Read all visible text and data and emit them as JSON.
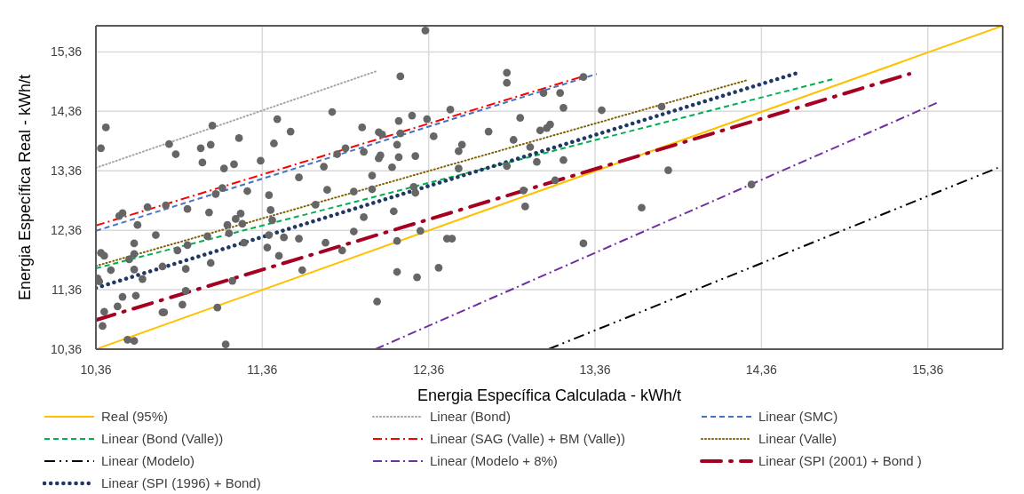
{
  "chart_data": {
    "type": "scatter",
    "xlabel": "Energia Específica Calculada - kWh/t",
    "ylabel": "Energia Específica Real - kWh/t",
    "xlim": [
      10.36,
      15.81
    ],
    "ylim": [
      10.36,
      15.8
    ],
    "xticks": [
      {
        "value": 10.36,
        "label": "10,36"
      },
      {
        "value": 11.36,
        "label": "11,36"
      },
      {
        "value": 12.36,
        "label": "12,36"
      },
      {
        "value": 13.36,
        "label": "13,36"
      },
      {
        "value": 14.36,
        "label": "14,36"
      },
      {
        "value": 15.36,
        "label": "15,36"
      }
    ],
    "yticks": [
      {
        "value": 10.36,
        "label": "10,36"
      },
      {
        "value": 11.36,
        "label": "11,36"
      },
      {
        "value": 12.36,
        "label": "12,36"
      },
      {
        "value": 13.36,
        "label": "13,36"
      },
      {
        "value": 14.36,
        "label": "14,36"
      },
      {
        "value": 15.36,
        "label": "15,36"
      }
    ],
    "grid": true,
    "legend": "bottom",
    "series": [
      {
        "color": "#666666",
        "marker": "circle",
        "x": [
          10.42,
          10.39,
          10.8,
          10.84,
          10.99,
          11.05,
          11.06,
          11.0,
          11.22,
          11.13,
          11.19,
          11.35,
          11.43,
          11.45,
          11.53,
          11.58,
          11.12,
          11.08,
          11.27,
          11.4,
          11.41,
          11.42,
          10.91,
          10.78,
          10.67,
          10.52,
          10.5,
          10.61,
          11.04,
          11.2,
          11.23,
          11.24,
          11.15,
          11.16,
          11.03,
          10.72,
          10.59,
          10.59,
          10.39,
          10.41,
          10.56,
          10.85,
          10.91,
          11.25,
          11.4,
          11.49,
          11.58,
          11.39,
          11.46,
          11.6,
          11.05,
          10.9,
          10.76,
          10.59,
          10.45,
          10.37,
          10.38,
          10.64,
          11.18,
          10.9,
          10.6,
          10.52,
          10.49,
          10.88,
          10.76,
          10.77,
          10.41,
          10.4,
          11.09,
          10.55,
          10.59,
          11.14,
          12.34,
          12.19,
          12.83,
          12.83,
          11.78,
          12.26,
          12.18,
          12.35,
          12.49,
          12.91,
          11.96,
          12.06,
          12.08,
          12.19,
          12.39,
          12.72,
          12.87,
          11.86,
          11.81,
          11.97,
          12.17,
          12.56,
          12.54,
          12.06,
          12.07,
          12.18,
          12.28,
          11.73,
          12.14,
          12.54,
          12.83,
          12.02,
          11.75,
          11.91,
          12.02,
          12.27,
          12.28,
          11.68,
          12.15,
          11.97,
          11.91,
          12.31,
          11.74,
          11.84,
          12.17,
          12.47,
          12.5,
          12.42,
          12.17,
          12.29,
          12.05,
          12.93,
          12.94,
          13.29,
          13.05,
          13.15,
          13.17,
          13.4,
          13.03,
          13.07,
          13.09,
          13.76,
          12.97,
          13.01,
          13.17,
          13.12,
          13.8,
          13.64,
          13.29,
          14.3
        ],
        "values": [
          14.09,
          13.74,
          13.81,
          13.64,
          13.74,
          13.8,
          14.12,
          13.5,
          13.91,
          13.4,
          13.47,
          13.53,
          13.82,
          14.23,
          14.02,
          13.25,
          13.07,
          12.97,
          13.02,
          12.95,
          12.7,
          12.53,
          12.72,
          12.78,
          12.75,
          12.65,
          12.6,
          12.45,
          12.66,
          12.55,
          12.64,
          12.47,
          12.45,
          12.31,
          12.26,
          12.28,
          12.14,
          11.96,
          11.98,
          11.93,
          11.87,
          12.02,
          12.11,
          12.15,
          12.28,
          12.24,
          12.22,
          12.07,
          11.93,
          11.69,
          11.81,
          11.71,
          11.75,
          11.7,
          11.69,
          11.55,
          11.5,
          11.54,
          11.51,
          11.34,
          11.26,
          11.24,
          11.08,
          11.11,
          10.98,
          10.98,
          10.99,
          10.75,
          11.06,
          10.52,
          10.5,
          10.44,
          15.72,
          14.95,
          15.01,
          14.84,
          14.35,
          14.29,
          14.2,
          14.23,
          14.39,
          14.25,
          14.09,
          14.01,
          13.97,
          13.99,
          13.94,
          14.02,
          13.88,
          13.74,
          13.64,
          13.68,
          13.8,
          13.8,
          13.69,
          13.57,
          13.62,
          13.59,
          13.61,
          13.43,
          13.42,
          13.4,
          13.44,
          13.28,
          13.04,
          13.01,
          13.05,
          13.09,
          12.99,
          12.79,
          12.68,
          12.58,
          12.34,
          12.35,
          12.15,
          12.02,
          12.18,
          12.22,
          12.22,
          11.73,
          11.66,
          11.57,
          11.16,
          13.03,
          12.76,
          14.94,
          14.67,
          14.67,
          14.42,
          14.38,
          14.04,
          14.08,
          14.14,
          14.44,
          13.76,
          13.51,
          13.54,
          13.2,
          13.37,
          12.74,
          12.14,
          13.13
        ]
      },
      {
        "type": "line",
        "name": "Real (95%)",
        "color": "#ffc000",
        "line_style": "solid",
        "x": [
          10.36,
          15.81
        ],
        "values": [
          10.36,
          15.8
        ]
      },
      {
        "type": "line",
        "name": "Linear (Bond)",
        "color": "#a6a6a6",
        "line_style": "dotted",
        "x": [
          10.36,
          12.05
        ],
        "values": [
          13.41,
          15.04
        ]
      },
      {
        "type": "line",
        "name": "Linear (SMC)",
        "color": "#4472c4",
        "line_style": "dashed",
        "x": [
          10.36,
          13.37
        ],
        "values": [
          12.35,
          14.99
        ]
      },
      {
        "type": "line",
        "name": "Linear (Bond (Valle))",
        "color": "#00b050",
        "line_style": "dashed",
        "x": [
          10.36,
          14.8
        ],
        "values": [
          11.72,
          14.91
        ]
      },
      {
        "type": "line",
        "name": "Linear (SAG (Valle) + BM (Valle))",
        "color": "#ff0000",
        "line_style": "dashdot",
        "x": [
          10.36,
          13.3
        ],
        "values": [
          12.44,
          14.96
        ]
      },
      {
        "type": "line",
        "name": "Linear (Valle)",
        "color": "#7f6000",
        "line_style": "dotted",
        "x": [
          10.36,
          14.28
        ],
        "values": [
          11.76,
          14.89
        ]
      },
      {
        "type": "line",
        "name": "Linear (Modelo)",
        "color": "#000000",
        "line_style": "dashdotdot",
        "x": [
          13.08,
          15.78
        ],
        "values": [
          10.36,
          13.41
        ]
      },
      {
        "type": "line",
        "name": "Linear (Modelo + 8%)",
        "color": "#7030a0",
        "line_style": "dashdot",
        "x": [
          12.04,
          15.42
        ],
        "values": [
          10.36,
          14.51
        ]
      },
      {
        "type": "line",
        "name": "Linear (SPI (2001) + Bond )",
        "color": "#a50021",
        "line_style": "longdashdot",
        "x": [
          10.36,
          15.25
        ],
        "values": [
          10.85,
          14.99
        ]
      },
      {
        "type": "line",
        "name": "Linear (SPI (1996) + Bond)",
        "color": "#1f3864",
        "line_style": "rounddot",
        "x": [
          10.36,
          14.58
        ],
        "values": [
          11.39,
          15.01
        ]
      }
    ]
  }
}
